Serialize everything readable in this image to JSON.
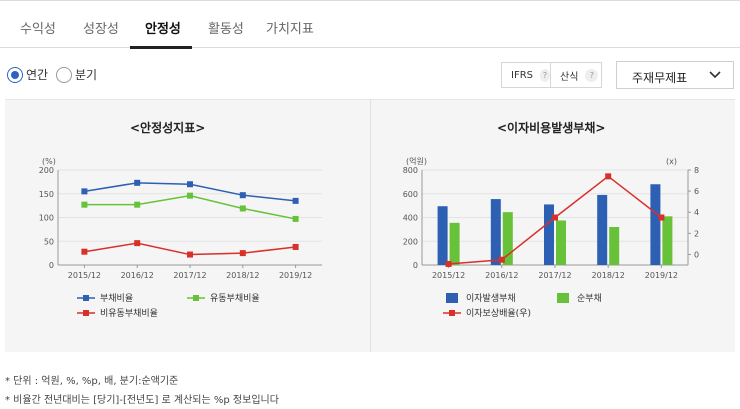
{
  "tabs": [
    {
      "label": "수익성",
      "active": false
    },
    {
      "label": "성장성",
      "active": false
    },
    {
      "label": "안정성",
      "active": true
    },
    {
      "label": "활동성",
      "active": false
    },
    {
      "label": "가치지표",
      "active": false
    }
  ],
  "period": {
    "annual_label": "연간",
    "quarter_label": "분기",
    "selected": "annual"
  },
  "options": {
    "ifrs_label": "IFRS",
    "formula_label": "산식",
    "help_glyph": "?"
  },
  "statement_select": {
    "value": "주재무제표"
  },
  "colors": {
    "blue": "#2d5fb3",
    "green": "#67c23a",
    "red": "#d9302a"
  },
  "chart_data": [
    {
      "type": "line",
      "title": "<안정성지표>",
      "unit_label": "(%)",
      "x": [
        "2015/12",
        "2016/12",
        "2017/12",
        "2018/12",
        "2019/12"
      ],
      "yticks": [
        "0",
        "50",
        "100",
        "150",
        "200"
      ],
      "ylim": [
        0,
        200
      ],
      "series": [
        {
          "name": "부채비율",
          "color": "#2d5fb3",
          "values": [
            155,
            173,
            170,
            147,
            135
          ]
        },
        {
          "name": "유동부채비율",
          "color": "#67c23a",
          "values": [
            127,
            127,
            146,
            119,
            97
          ]
        },
        {
          "name": "비유동부채비율",
          "color": "#d9302a",
          "values": [
            28,
            46,
            22,
            25,
            38
          ]
        }
      ]
    },
    {
      "type": "bar",
      "title": "<이자비용발생부채>",
      "unit_label_left": "(억원)",
      "unit_label_right": "(x)",
      "x": [
        "2015/12",
        "2016/12",
        "2017/12",
        "2018/12",
        "2019/12"
      ],
      "yticks_left": [
        "0",
        "200",
        "400",
        "600",
        "800"
      ],
      "yticks_right": [
        "0",
        "2",
        "4",
        "6",
        "8"
      ],
      "ylim_left": [
        0,
        800
      ],
      "ylim_right": [
        -1,
        8
      ],
      "series": [
        {
          "name": "이자발생부채",
          "color": "#2d5fb3",
          "axis": "left",
          "kind": "bar",
          "values": [
            495,
            555,
            510,
            590,
            680
          ]
        },
        {
          "name": "순부채",
          "color": "#67c23a",
          "axis": "left",
          "kind": "bar",
          "values": [
            355,
            445,
            375,
            320,
            410
          ]
        },
        {
          "name": "이자보상배율(우)",
          "color": "#d9302a",
          "axis": "right",
          "kind": "line",
          "values": [
            -0.9,
            -0.5,
            3.5,
            7.4,
            3.5
          ]
        }
      ]
    }
  ],
  "notes": [
    "* 단위 : 억원, %, %p, 배, 분기:순액기준",
    "* 비율간 전년대비는 [당기]-[전년도] 로 계산되는 %p 정보입니다"
  ]
}
